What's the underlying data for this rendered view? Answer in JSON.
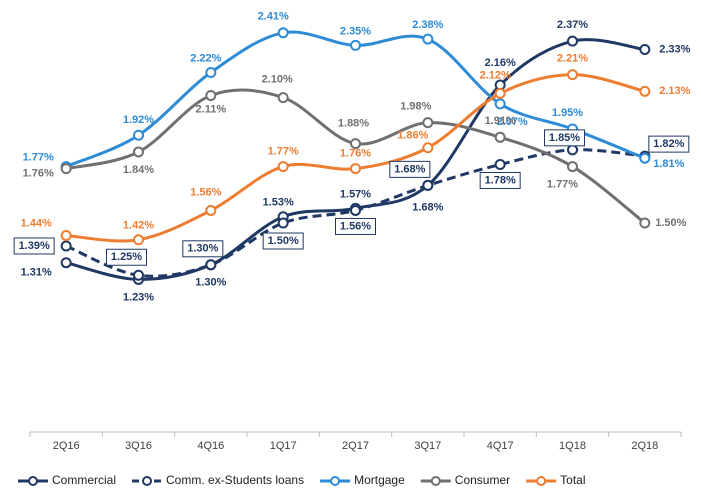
{
  "chart_data": {
    "type": "line",
    "categories": [
      "2Q16",
      "3Q16",
      "4Q16",
      "1Q17",
      "2Q17",
      "3Q17",
      "4Q17",
      "1Q18",
      "2Q18"
    ],
    "ylim": [
      0.5,
      2.5
    ],
    "series": [
      {
        "name": "Commercial",
        "color": "#1f3864",
        "dashed": false,
        "boxed": false,
        "values": [
          1.31,
          1.23,
          1.3,
          1.53,
          1.57,
          1.68,
          2.16,
          2.37,
          2.33
        ],
        "value_labels": [
          "1.31%",
          "1.23%",
          "1.30%",
          "1.53%",
          "1.57%",
          "1.68%",
          "2.16%",
          "2.37%",
          "2.33%"
        ]
      },
      {
        "name": "Comm. ex-Students loans",
        "color": "#1f3864",
        "dashed": true,
        "boxed": true,
        "values": [
          1.39,
          1.25,
          1.3,
          1.5,
          1.56,
          1.68,
          1.78,
          1.85,
          1.82
        ],
        "value_labels": [
          "1.39%",
          "1.25%",
          "1.30%",
          "1.50%",
          "1.56%",
          "1.68%",
          "1.78%",
          "1.85%",
          "1.82%"
        ]
      },
      {
        "name": "Mortgage",
        "color": "#2e8bd6",
        "dashed": false,
        "boxed": false,
        "values": [
          1.77,
          1.92,
          2.22,
          2.41,
          2.35,
          2.38,
          2.07,
          1.95,
          1.81
        ],
        "value_labels": [
          "1.77%",
          "1.92%",
          "2.22%",
          "2.41%",
          "2.35%",
          "2.38%",
          "2.07%",
          "1.95%",
          "1.81%"
        ]
      },
      {
        "name": "Consumer",
        "color": "#707070",
        "dashed": false,
        "boxed": false,
        "values": [
          1.76,
          1.84,
          2.11,
          2.1,
          1.88,
          1.98,
          1.91,
          1.77,
          1.5
        ],
        "value_labels": [
          "1.76%",
          "1.84%",
          "2.11%",
          "2.10%",
          "1.88%",
          "1.98%",
          "1.91%",
          "1.77%",
          "1.50%"
        ]
      },
      {
        "name": "Total",
        "color": "#ed7d31",
        "dashed": false,
        "boxed": false,
        "values": [
          1.44,
          1.42,
          1.56,
          1.77,
          1.76,
          1.86,
          2.12,
          2.21,
          2.13
        ],
        "value_labels": [
          "1.44%",
          "1.42%",
          "1.56%",
          "1.77%",
          "1.76%",
          "1.86%",
          "2.12%",
          "2.21%",
          "2.13%"
        ]
      }
    ]
  }
}
